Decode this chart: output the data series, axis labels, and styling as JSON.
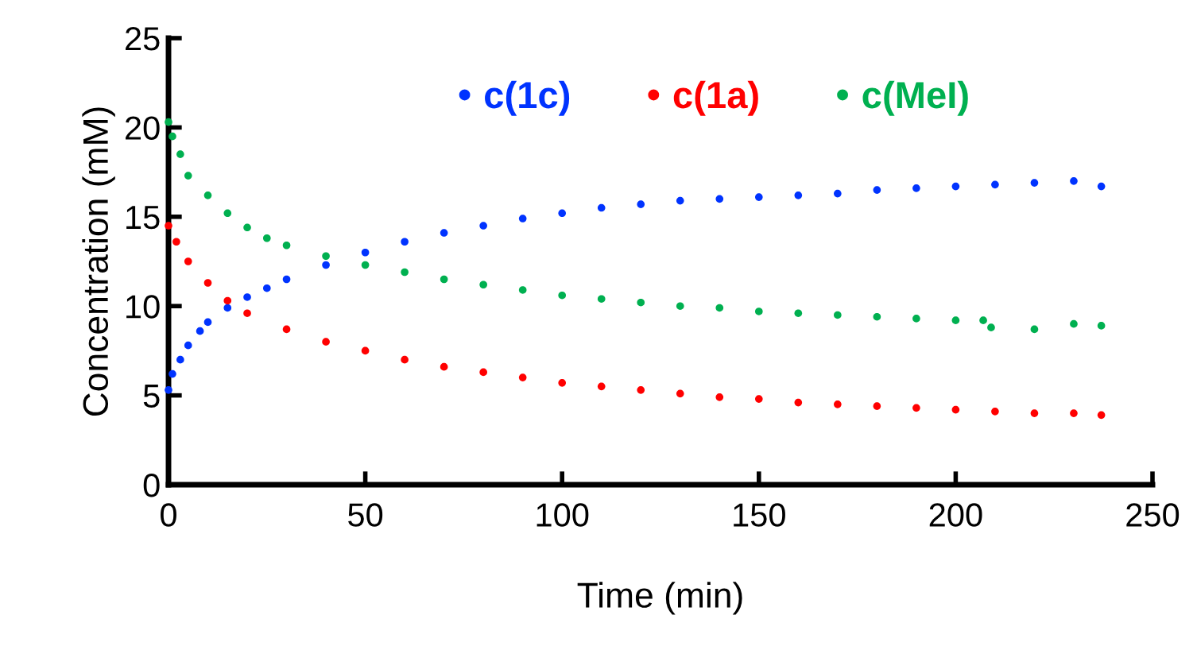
{
  "chart_data": {
    "type": "scatter",
    "xlabel": "Time (min)",
    "ylabel": "Concentration (mM)",
    "xlim": [
      0,
      250
    ],
    "xticks": [
      0,
      50,
      100,
      150,
      200,
      250
    ],
    "ylim": [
      0,
      25
    ],
    "yticks": [
      0,
      5,
      10,
      15,
      20,
      25
    ],
    "grid": false,
    "legend": "top",
    "marker": "circle",
    "series": [
      {
        "name": "c(1c)",
        "color": "#0033ff",
        "x": [
          0,
          1,
          3,
          5,
          8,
          10,
          15,
          20,
          25,
          30,
          40,
          50,
          60,
          70,
          80,
          90,
          100,
          110,
          120,
          130,
          140,
          150,
          160,
          170,
          180,
          190,
          200,
          210,
          220,
          230,
          237
        ],
        "values": [
          5.3,
          6.2,
          7.0,
          7.8,
          8.6,
          9.1,
          9.9,
          10.5,
          11.0,
          11.5,
          12.3,
          13.0,
          13.6,
          14.1,
          14.5,
          14.9,
          15.2,
          15.5,
          15.7,
          15.9,
          16.0,
          16.1,
          16.2,
          16.3,
          16.5,
          16.6,
          16.7,
          16.8,
          16.9,
          17.0,
          16.7
        ]
      },
      {
        "name": "c(1a)",
        "color": "#ff0000",
        "x": [
          0,
          2,
          5,
          10,
          15,
          20,
          30,
          40,
          50,
          60,
          70,
          80,
          90,
          100,
          110,
          120,
          130,
          140,
          150,
          160,
          170,
          180,
          190,
          200,
          210,
          220,
          230,
          237
        ],
        "values": [
          14.5,
          13.6,
          12.5,
          11.3,
          10.3,
          9.6,
          8.7,
          8.0,
          7.5,
          7.0,
          6.6,
          6.3,
          6.0,
          5.7,
          5.5,
          5.3,
          5.1,
          4.9,
          4.8,
          4.6,
          4.5,
          4.4,
          4.3,
          4.2,
          4.1,
          4.0,
          4.0,
          3.9
        ]
      },
      {
        "name": "c(MeI)",
        "color": "#00b050",
        "x": [
          0,
          1,
          3,
          5,
          10,
          15,
          20,
          25,
          30,
          40,
          50,
          60,
          70,
          80,
          90,
          100,
          110,
          120,
          130,
          140,
          150,
          160,
          170,
          180,
          190,
          200,
          207,
          209,
          220,
          230,
          237
        ],
        "values": [
          20.3,
          19.5,
          18.5,
          17.3,
          16.2,
          15.2,
          14.4,
          13.8,
          13.4,
          12.8,
          12.3,
          11.9,
          11.5,
          11.2,
          10.9,
          10.6,
          10.4,
          10.2,
          10.0,
          9.9,
          9.7,
          9.6,
          9.5,
          9.4,
          9.3,
          9.2,
          9.2,
          8.8,
          8.7,
          9.0,
          8.9
        ]
      }
    ]
  }
}
